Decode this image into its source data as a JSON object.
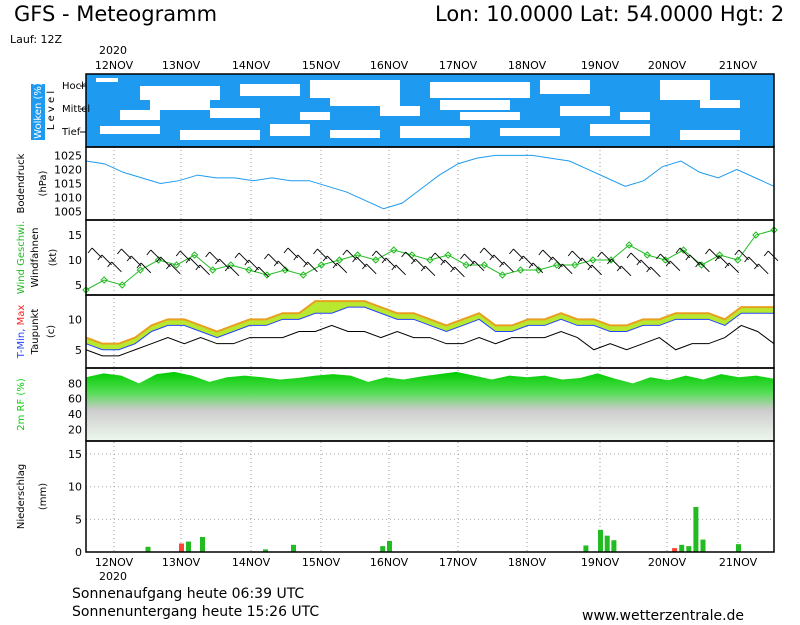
{
  "header": {
    "title": "GFS - Meteogramm",
    "coords": "Lon: 10.0000  Lat: 54.0000  Hgt: 2",
    "run": "Lauf: 12Z",
    "year": "2020"
  },
  "footer": {
    "sunrise": "Sonnenaufgang heute 06:39 UTC",
    "sunset": "Sonnenuntergang heute 15:26 UTC",
    "website": "www.wetterzentrale.de"
  },
  "colors": {
    "cloud": "#1e9bf0",
    "pressure": "#1e9bf0",
    "wind": "#22bb22",
    "tmin": "#2244ff",
    "tmax": "#ff2222",
    "rh": "#11cc11",
    "precip_rain": "#22bb22",
    "precip_alt": "#ff4433"
  },
  "chart_data": [
    {
      "type": "area",
      "panel": "clouds",
      "ylabel": "Wolken (%)",
      "ylabel2": "L e v e l",
      "levels": [
        "Hoch",
        "Mittel",
        "Tief"
      ],
      "x": [
        "12NOV",
        "13NOV",
        "14NOV",
        "15NOV",
        "16NOV",
        "17NOV",
        "18NOV",
        "19NOV",
        "20NOV",
        "21NOV"
      ]
    },
    {
      "type": "line",
      "panel": "pressure",
      "ylabel": "Bodendruck",
      "yunit": "(hPa)",
      "yticks": [
        1005,
        1010,
        1015,
        1020,
        1025
      ],
      "ylim": [
        1002,
        1028
      ],
      "x_hours": [
        0,
        6,
        12,
        18,
        24,
        30,
        36,
        42,
        48,
        54,
        60,
        66,
        72,
        78,
        84,
        90,
        96,
        102,
        108,
        114,
        120,
        126,
        132,
        138,
        144,
        150,
        156,
        162,
        168,
        174,
        180,
        186,
        192,
        198,
        204,
        210,
        216,
        222
      ],
      "series": [
        {
          "values": [
            1023,
            1022,
            1019,
            1017,
            1015,
            1016,
            1018,
            1017,
            1017,
            1016,
            1017,
            1016,
            1016,
            1014,
            1012,
            1009,
            1006,
            1008,
            1013,
            1018,
            1022,
            1024,
            1025,
            1025,
            1025,
            1024,
            1023,
            1020,
            1017,
            1014,
            1016,
            1021,
            1023,
            1019,
            1017,
            1020,
            1017,
            1014
          ]
        }
      ]
    },
    {
      "type": "line",
      "panel": "wind",
      "ylabel": "Wind Geschwi.",
      "ylabel2": "Windfahnen",
      "yunit": "(kt)",
      "yticks": [
        5,
        10,
        15
      ],
      "ylim": [
        3,
        18
      ],
      "series": [
        {
          "values": [
            4,
            6,
            5,
            8,
            10,
            9,
            11,
            8,
            9,
            8,
            7,
            8,
            7,
            9,
            10,
            11,
            10,
            12,
            11,
            10,
            11,
            9,
            9,
            7,
            8,
            8,
            9,
            9,
            10,
            10,
            13,
            11,
            10,
            12,
            9,
            11,
            10,
            15,
            16
          ]
        }
      ]
    },
    {
      "type": "area",
      "panel": "temperature",
      "ylabel": "T-Min, Max",
      "ylabel2": "Taupunkt",
      "yunit": "(c)",
      "yticks": [
        5,
        10
      ],
      "ylim": [
        2,
        14
      ],
      "series": [
        {
          "values": [
            6,
            5,
            5,
            6,
            8,
            9,
            9,
            8,
            7,
            8,
            9,
            9,
            10,
            10,
            11,
            11,
            12,
            12,
            11,
            10,
            10,
            9,
            8,
            9,
            10,
            8,
            8,
            9,
            9,
            10,
            9,
            9,
            8,
            8,
            9,
            9,
            10,
            10,
            10,
            9,
            11,
            11,
            11
          ]
        },
        {
          "values": [
            7,
            6,
            6,
            7,
            9,
            10,
            10,
            9,
            8,
            9,
            10,
            10,
            11,
            11,
            13,
            13,
            13,
            13,
            12,
            11,
            11,
            10,
            9,
            10,
            11,
            9,
            9,
            10,
            10,
            11,
            10,
            10,
            9,
            9,
            10,
            10,
            11,
            11,
            11,
            10,
            12,
            12,
            12
          ]
        },
        {
          "values": [
            5,
            4,
            4,
            5,
            6,
            7,
            6,
            7,
            6,
            6,
            7,
            7,
            7,
            8,
            8,
            9,
            8,
            8,
            7,
            8,
            7,
            7,
            6,
            6,
            7,
            6,
            7,
            7,
            7,
            8,
            7,
            5,
            6,
            5,
            6,
            7,
            5,
            6,
            6,
            7,
            9,
            8,
            6
          ]
        }
      ]
    },
    {
      "type": "area",
      "panel": "humidity",
      "ylabel": "2m RF (%)",
      "yticks": [
        20,
        40,
        60,
        80
      ],
      "ylim": [
        5,
        100
      ],
      "series": [
        {
          "values": [
            88,
            93,
            90,
            80,
            92,
            95,
            90,
            82,
            88,
            90,
            88,
            85,
            87,
            90,
            92,
            90,
            82,
            88,
            85,
            89,
            92,
            95,
            90,
            85,
            90,
            88,
            90,
            85,
            87,
            93,
            86,
            80,
            88,
            84,
            90,
            85,
            92,
            88,
            90,
            86
          ]
        }
      ]
    },
    {
      "type": "bar",
      "panel": "precipitation",
      "ylabel": "Niederschlag",
      "yunit": "(mm)",
      "yticks": [
        0,
        5,
        10,
        15
      ],
      "ylim": [
        0,
        17
      ],
      "bars_day": [
        0.8,
        1.3,
        1.6,
        2.3,
        0.4,
        1.1,
        0.9,
        1.7,
        1.0,
        3.4,
        2.5,
        1.8,
        0.6,
        1.1,
        0.9,
        6.9,
        1.9,
        0.4,
        0.5,
        1.2
      ],
      "bars_hour": [
        12.5,
        13.0,
        13.1,
        13.3,
        14.2,
        14.6,
        15.9,
        16.0,
        18.8,
        19.0,
        19.1,
        19.2,
        20.1,
        20.2,
        20.3,
        20.4,
        20.5,
        21.0,
        21.1,
        21.4
      ],
      "bars_red": [
        0,
        1,
        0,
        0,
        0,
        0,
        0,
        0,
        0,
        0,
        0,
        0,
        1,
        0,
        0,
        0,
        0,
        0,
        0,
        0
      ]
    }
  ]
}
